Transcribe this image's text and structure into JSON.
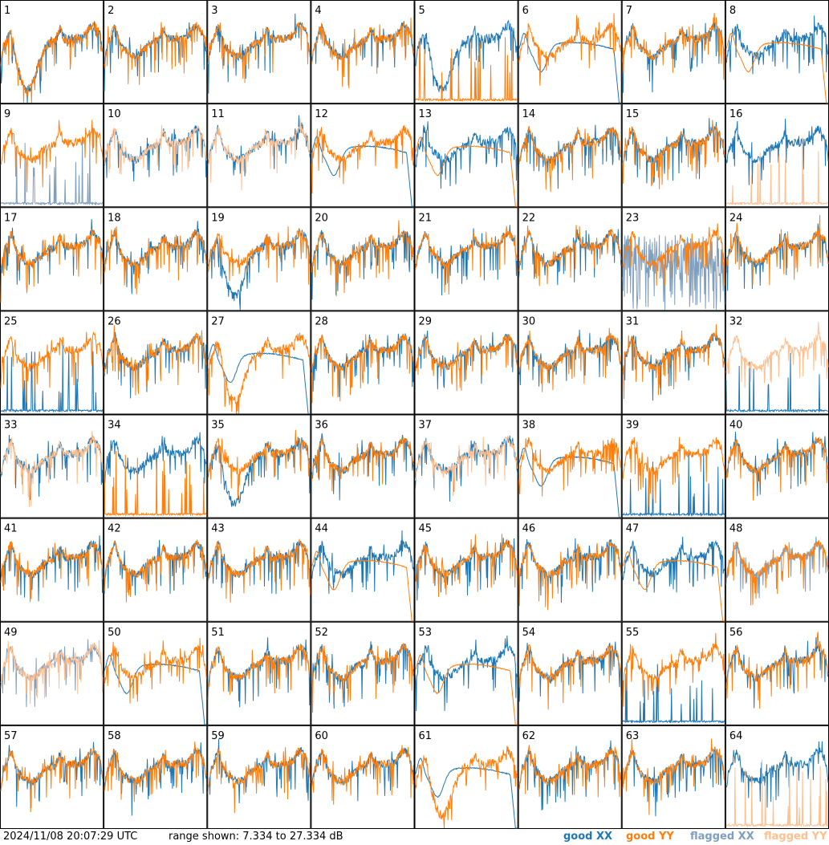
{
  "footer": {
    "timestamp": "2024/11/08 20:07:29 UTC",
    "range": "range shown: 7.334 to 27.334 dB"
  },
  "legend": [
    {
      "label": "good XX",
      "color": "#1f77b4"
    },
    {
      "label": "good YY",
      "color": "#ff7f0e"
    },
    {
      "label": "flagged XX",
      "color": "#7f9fbf"
    },
    {
      "label": "flagged YY",
      "color": "#ffbf8f"
    }
  ],
  "chart_data": {
    "type": "line",
    "grid_rows": 8,
    "grid_cols": 8,
    "ylim_db": [
      7.334,
      27.334
    ],
    "panel_labels": [
      "1",
      "2",
      "3",
      "4",
      "5",
      "6",
      "7",
      "8",
      "9",
      "10",
      "11",
      "12",
      "13",
      "14",
      "15",
      "16",
      "17",
      "18",
      "19",
      "20",
      "21",
      "22",
      "23",
      "24",
      "25",
      "26",
      "27",
      "28",
      "29",
      "30",
      "31",
      "32",
      "33",
      "34",
      "35",
      "36",
      "37",
      "38",
      "39",
      "40",
      "41",
      "42",
      "43",
      "44",
      "45",
      "46",
      "47",
      "48",
      "49",
      "50",
      "51",
      "52",
      "53",
      "54",
      "55",
      "56",
      "57",
      "58",
      "59",
      "60",
      "61",
      "62",
      "63",
      "64"
    ],
    "series_colors": {
      "good_xx": "#1f77b4",
      "good_yy": "#ff7f0e",
      "flagged_xx": "#7f9fbf",
      "flagged_yy": "#ffbf8f"
    },
    "panels": [
      {
        "xx": "dip",
        "yy": "dip",
        "xx_flagged": false,
        "yy_flagged": false
      },
      {
        "xx": "normal",
        "yy": "normal",
        "xx_flagged": false,
        "yy_flagged": false
      },
      {
        "xx": "normal",
        "yy": "normal",
        "xx_flagged": false,
        "yy_flagged": false
      },
      {
        "xx": "normal",
        "yy": "normal",
        "xx_flagged": false,
        "yy_flagged": false
      },
      {
        "xx": "dip",
        "yy": "spikes",
        "xx_flagged": false,
        "yy_flagged": false
      },
      {
        "xx": "smooth",
        "yy": "normal",
        "xx_flagged": false,
        "yy_flagged": false
      },
      {
        "xx": "normal",
        "yy": "normal",
        "xx_flagged": false,
        "yy_flagged": false
      },
      {
        "xx": "normal",
        "yy": "smooth",
        "xx_flagged": false,
        "yy_flagged": false
      },
      {
        "xx": "spikes",
        "yy": "normal",
        "xx_flagged": true,
        "yy_flagged": false
      },
      {
        "xx": "normal",
        "yy": "normal",
        "xx_flagged": false,
        "yy_flagged": true
      },
      {
        "xx": "normal",
        "yy": "normal",
        "xx_flagged": false,
        "yy_flagged": true
      },
      {
        "xx": "smooth",
        "yy": "normal",
        "xx_flagged": false,
        "yy_flagged": false
      },
      {
        "xx": "normal",
        "yy": "smooth",
        "xx_flagged": false,
        "yy_flagged": false
      },
      {
        "xx": "normal",
        "yy": "normal",
        "xx_flagged": false,
        "yy_flagged": false
      },
      {
        "xx": "normal",
        "yy": "normal",
        "xx_flagged": false,
        "yy_flagged": false
      },
      {
        "xx": "normal",
        "yy": "spikes",
        "xx_flagged": false,
        "yy_flagged": true
      },
      {
        "xx": "normal",
        "yy": "normal",
        "xx_flagged": false,
        "yy_flagged": false
      },
      {
        "xx": "normal",
        "yy": "normal",
        "xx_flagged": false,
        "yy_flagged": false
      },
      {
        "xx": "dip",
        "yy": "normal",
        "xx_flagged": false,
        "yy_flagged": false
      },
      {
        "xx": "normal",
        "yy": "normal",
        "xx_flagged": false,
        "yy_flagged": false
      },
      {
        "xx": "normal",
        "yy": "normal",
        "xx_flagged": false,
        "yy_flagged": false
      },
      {
        "xx": "normal",
        "yy": "normal",
        "xx_flagged": false,
        "yy_flagged": false
      },
      {
        "xx": "noise",
        "yy": "normal",
        "xx_flagged": true,
        "yy_flagged": false
      },
      {
        "xx": "normal",
        "yy": "normal",
        "xx_flagged": false,
        "yy_flagged": false
      },
      {
        "xx": "spikes",
        "yy": "normal",
        "xx_flagged": false,
        "yy_flagged": false
      },
      {
        "xx": "normal",
        "yy": "normal",
        "xx_flagged": false,
        "yy_flagged": false
      },
      {
        "xx": "smooth",
        "yy": "dip",
        "xx_flagged": false,
        "yy_flagged": false
      },
      {
        "xx": "normal",
        "yy": "normal",
        "xx_flagged": false,
        "yy_flagged": false
      },
      {
        "xx": "normal",
        "yy": "normal",
        "xx_flagged": false,
        "yy_flagged": false
      },
      {
        "xx": "normal",
        "yy": "normal",
        "xx_flagged": false,
        "yy_flagged": false
      },
      {
        "xx": "normal",
        "yy": "normal",
        "xx_flagged": false,
        "yy_flagged": false
      },
      {
        "xx": "spikes",
        "yy": "normal",
        "xx_flagged": false,
        "yy_flagged": true
      },
      {
        "xx": "normal",
        "yy": "normal",
        "xx_flagged": false,
        "yy_flagged": true
      },
      {
        "xx": "normal",
        "yy": "spikes",
        "xx_flagged": false,
        "yy_flagged": false
      },
      {
        "xx": "dip",
        "yy": "normal",
        "xx_flagged": false,
        "yy_flagged": false
      },
      {
        "xx": "normal",
        "yy": "normal",
        "xx_flagged": false,
        "yy_flagged": false
      },
      {
        "xx": "normal",
        "yy": "normal",
        "xx_flagged": false,
        "yy_flagged": true
      },
      {
        "xx": "smooth",
        "yy": "normal",
        "xx_flagged": false,
        "yy_flagged": false
      },
      {
        "xx": "spikes",
        "yy": "normal",
        "xx_flagged": false,
        "yy_flagged": false
      },
      {
        "xx": "normal",
        "yy": "normal",
        "xx_flagged": false,
        "yy_flagged": false
      },
      {
        "xx": "normal",
        "yy": "normal",
        "xx_flagged": false,
        "yy_flagged": false
      },
      {
        "xx": "normal",
        "yy": "normal",
        "xx_flagged": false,
        "yy_flagged": false
      },
      {
        "xx": "normal",
        "yy": "normal",
        "xx_flagged": false,
        "yy_flagged": false
      },
      {
        "xx": "normal",
        "yy": "smooth",
        "xx_flagged": false,
        "yy_flagged": false
      },
      {
        "xx": "normal",
        "yy": "normal",
        "xx_flagged": false,
        "yy_flagged": false
      },
      {
        "xx": "normal",
        "yy": "normal",
        "xx_flagged": false,
        "yy_flagged": false
      },
      {
        "xx": "normal",
        "yy": "smooth",
        "xx_flagged": false,
        "yy_flagged": false
      },
      {
        "xx": "normal",
        "yy": "normal",
        "xx_flagged": true,
        "yy_flagged": false
      },
      {
        "xx": "normal",
        "yy": "normal",
        "xx_flagged": true,
        "yy_flagged": true
      },
      {
        "xx": "smooth",
        "yy": "normal",
        "xx_flagged": false,
        "yy_flagged": false
      },
      {
        "xx": "normal",
        "yy": "normal",
        "xx_flagged": false,
        "yy_flagged": false
      },
      {
        "xx": "normal",
        "yy": "normal",
        "xx_flagged": false,
        "yy_flagged": false
      },
      {
        "xx": "normal",
        "yy": "smooth",
        "xx_flagged": false,
        "yy_flagged": false
      },
      {
        "xx": "normal",
        "yy": "normal",
        "xx_flagged": false,
        "yy_flagged": false
      },
      {
        "xx": "spikes",
        "yy": "normal",
        "xx_flagged": false,
        "yy_flagged": false
      },
      {
        "xx": "normal",
        "yy": "normal",
        "xx_flagged": false,
        "yy_flagged": false
      },
      {
        "xx": "normal",
        "yy": "normal",
        "xx_flagged": false,
        "yy_flagged": false
      },
      {
        "xx": "normal",
        "yy": "normal",
        "xx_flagged": false,
        "yy_flagged": false
      },
      {
        "xx": "normal",
        "yy": "normal",
        "xx_flagged": false,
        "yy_flagged": false
      },
      {
        "xx": "normal",
        "yy": "normal",
        "xx_flagged": false,
        "yy_flagged": false
      },
      {
        "xx": "smooth",
        "yy": "dip",
        "xx_flagged": false,
        "yy_flagged": false
      },
      {
        "xx": "normal",
        "yy": "normal",
        "xx_flagged": false,
        "yy_flagged": false
      },
      {
        "xx": "normal",
        "yy": "normal",
        "xx_flagged": false,
        "yy_flagged": false
      },
      {
        "xx": "normal",
        "yy": "spikes",
        "xx_flagged": false,
        "yy_flagged": true
      }
    ]
  }
}
